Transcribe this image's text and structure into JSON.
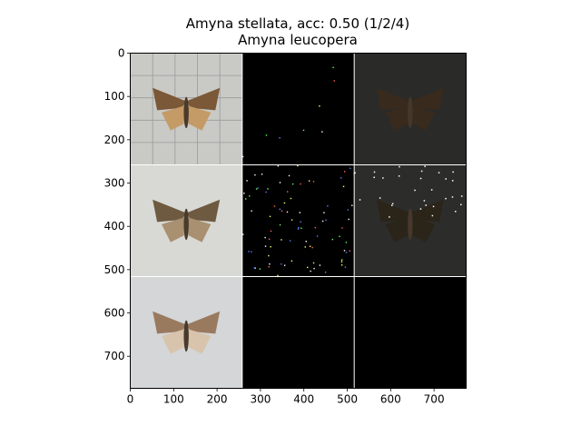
{
  "chart_data": {
    "type": "image-grid",
    "title": "Amyna stellata, acc: 0.50 (1/2/4)",
    "subtitle": "Amyna leucopera",
    "xlim": [
      0,
      774
    ],
    "ylim": [
      774,
      0
    ],
    "x_ticks": [
      0,
      100,
      200,
      300,
      400,
      500,
      600,
      700
    ],
    "y_ticks": [
      0,
      100,
      200,
      300,
      400,
      500,
      600,
      700
    ],
    "grid_rows": 3,
    "grid_cols": 3,
    "cell_size": 258,
    "separator_color": "#ffffff",
    "cells": [
      {
        "row": 0,
        "col": 0,
        "kind": "photo",
        "name": "specimen-photo-1",
        "bg": "#c9c9c5",
        "wing": "#7a5838",
        "wing_light": "#c49a66",
        "grid_lines": true
      },
      {
        "row": 0,
        "col": 1,
        "kind": "saliency",
        "name": "saliency-map-1",
        "bg": "#000000",
        "speckle": "sparse"
      },
      {
        "row": 0,
        "col": 2,
        "kind": "overlay",
        "name": "overlay-map-1",
        "bg": "#2a2a28",
        "wing": "#3a2a1c"
      },
      {
        "row": 1,
        "col": 0,
        "kind": "photo",
        "name": "specimen-photo-2",
        "bg": "#d8d8d4",
        "wing": "#6e5a40",
        "wing_light": "#a89070",
        "grid_lines": false
      },
      {
        "row": 1,
        "col": 1,
        "kind": "saliency",
        "name": "saliency-map-2",
        "bg": "#000000",
        "speckle": "dense"
      },
      {
        "row": 1,
        "col": 2,
        "kind": "overlay",
        "name": "overlay-map-2",
        "bg": "#2c2c2a",
        "wing": "#2a2418"
      },
      {
        "row": 2,
        "col": 0,
        "kind": "photo",
        "name": "specimen-photo-3",
        "bg": "#d4d6d8",
        "wing": "#9a7a5e",
        "wing_light": "#d8c4ac",
        "grid_lines": false
      },
      {
        "row": 2,
        "col": 1,
        "kind": "blank",
        "name": "empty-cell-1",
        "bg": "#000000"
      },
      {
        "row": 2,
        "col": 2,
        "kind": "blank",
        "name": "empty-cell-2",
        "bg": "#000000"
      }
    ]
  }
}
